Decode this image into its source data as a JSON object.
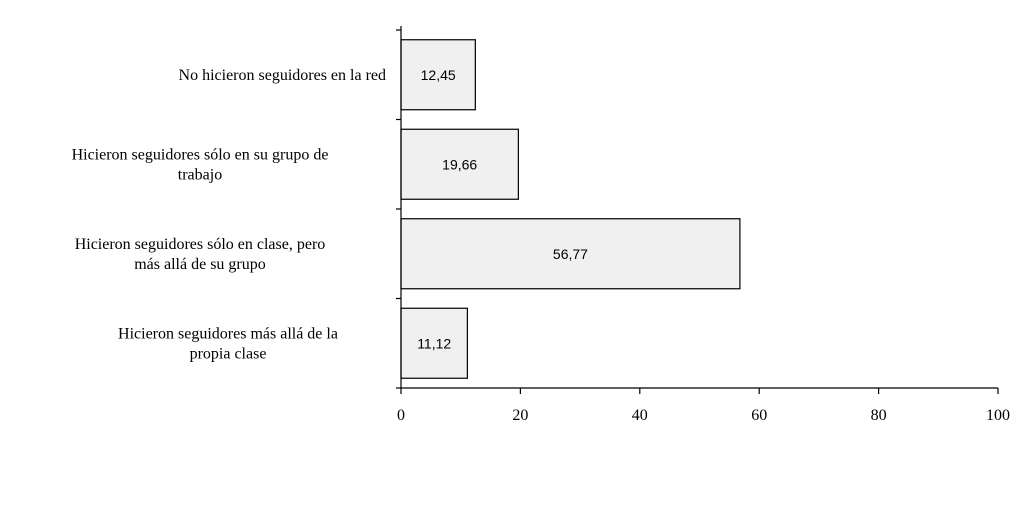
{
  "chart_data": {
    "type": "bar",
    "orientation": "horizontal",
    "categories": [
      [
        "No hicieron seguidores en la red"
      ],
      [
        "Hicieron seguidores sólo en su grupo de",
        "trabajo"
      ],
      [
        "Hicieron seguidores sólo en clase, pero",
        "más allá de su grupo"
      ],
      [
        "Hicieron seguidores más allá de la",
        "propia clase"
      ]
    ],
    "values": [
      12.45,
      19.66,
      56.77,
      11.12
    ],
    "data_labels": [
      "12,45",
      "19,66",
      "56,77",
      "11,12"
    ],
    "xlim": [
      0,
      100
    ],
    "xticks": [
      0,
      20,
      40,
      60,
      80,
      100
    ],
    "title": "",
    "xlabel": "",
    "ylabel": "",
    "grid": false,
    "colors": {
      "bar_fill": "#f0f0f0",
      "bar_stroke": "#000000",
      "axis": "#000000"
    }
  }
}
